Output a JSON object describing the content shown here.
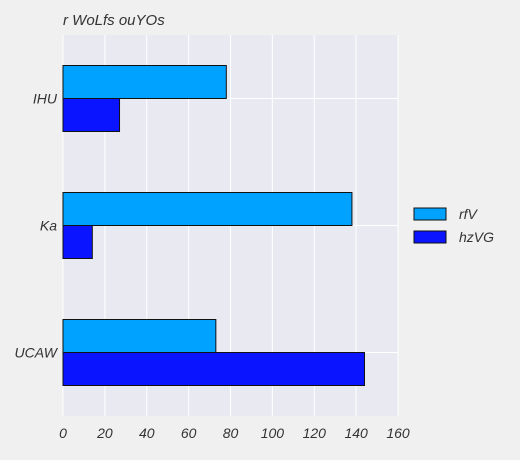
{
  "chart_data": {
    "type": "bar",
    "orientation": "horizontal",
    "title": "r WoLfs ouYOs",
    "xlabel": "",
    "ylabel": "",
    "categories": [
      "IHU",
      "Ka",
      "UCAW"
    ],
    "series": [
      {
        "name": "rfV",
        "color": "#00a2ff",
        "values": [
          78,
          138,
          73
        ]
      },
      {
        "name": "hzVG",
        "color": "#0a14ff",
        "values": [
          27,
          14,
          144
        ]
      }
    ],
    "xlim": [
      0,
      160
    ],
    "xticks": [
      0,
      20,
      40,
      60,
      80,
      100,
      120,
      140,
      160
    ],
    "grid": true,
    "legend_position": "right",
    "colors": {
      "background": "#f0f0f0",
      "plot_background": "#e9e9f2",
      "grid": "#ffffff"
    }
  }
}
